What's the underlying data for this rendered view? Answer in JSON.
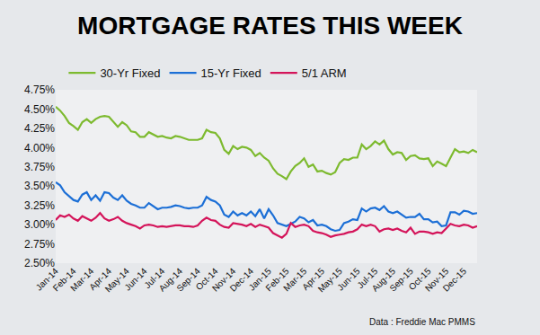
{
  "chart_data": {
    "type": "line",
    "title": "MORTGAGE RATES THIS WEEK",
    "source": "Data : Freddie Mac PMMS",
    "categories": [
      "Jan-14",
      null,
      null,
      null,
      "Feb-14",
      null,
      null,
      null,
      "Mar-14",
      null,
      null,
      null,
      "Apr-14",
      null,
      null,
      null,
      "May-14",
      null,
      null,
      null,
      "Jun-14",
      null,
      null,
      null,
      "Jul-14",
      null,
      null,
      null,
      "Aug-14",
      null,
      null,
      null,
      "Sep-14",
      null,
      null,
      null,
      "Oct-14",
      null,
      null,
      null,
      "Nov-14",
      null,
      null,
      null,
      "Dec-14",
      null,
      null,
      null,
      "Jan-15",
      null,
      null,
      null,
      "Feb-15",
      null,
      null,
      null,
      "Mar-15",
      null,
      null,
      null,
      "Apr-15",
      null,
      null,
      null,
      "May-15",
      null,
      null,
      null,
      "Jun-15",
      null,
      null,
      null,
      "Jul-15",
      null,
      null,
      null,
      "Aug-15",
      null,
      null,
      null,
      "Sep-15",
      null,
      null,
      null,
      "Oct-15",
      null,
      null,
      null,
      "Nov-15",
      null,
      null,
      null,
      "Dec-15",
      null,
      null,
      null
    ],
    "series": [
      {
        "name": "30-Yr Fixed",
        "color": "#7dba2f",
        "values": [
          4.53,
          4.48,
          4.41,
          4.32,
          4.28,
          4.23,
          4.33,
          4.37,
          4.32,
          4.37,
          4.4,
          4.41,
          4.4,
          4.34,
          4.27,
          4.33,
          4.29,
          4.21,
          4.2,
          4.14,
          4.14,
          4.2,
          4.17,
          4.14,
          4.15,
          4.13,
          4.12,
          4.15,
          4.14,
          4.12,
          4.1,
          4.1,
          4.1,
          4.12,
          4.23,
          4.2,
          4.19,
          4.12,
          3.97,
          3.92,
          4.02,
          3.98,
          4.01,
          4.0,
          3.97,
          3.89,
          3.93,
          3.87,
          3.83,
          3.73,
          3.66,
          3.63,
          3.59,
          3.69,
          3.76,
          3.8,
          3.86,
          3.75,
          3.78,
          3.69,
          3.7,
          3.67,
          3.65,
          3.68,
          3.8,
          3.85,
          3.84,
          3.87,
          3.87,
          4.04,
          3.98,
          4.02,
          4.08,
          4.04,
          4.09,
          3.98,
          3.91,
          3.94,
          3.93,
          3.84,
          3.89,
          3.9,
          3.86,
          3.85,
          3.86,
          3.76,
          3.82,
          3.79,
          3.76,
          3.87,
          3.98,
          3.94,
          3.95,
          3.93,
          3.97,
          3.94
        ]
      },
      {
        "name": "15-Yr Fixed",
        "color": "#1c6fd6",
        "values": [
          3.55,
          3.51,
          3.42,
          3.37,
          3.32,
          3.3,
          3.39,
          3.42,
          3.32,
          3.38,
          3.31,
          3.42,
          3.41,
          3.35,
          3.32,
          3.38,
          3.31,
          3.27,
          3.25,
          3.22,
          3.22,
          3.28,
          3.24,
          3.2,
          3.22,
          3.22,
          3.23,
          3.25,
          3.24,
          3.22,
          3.21,
          3.22,
          3.22,
          3.25,
          3.36,
          3.32,
          3.3,
          3.25,
          3.13,
          3.1,
          3.17,
          3.12,
          3.15,
          3.12,
          3.17,
          3.11,
          3.2,
          3.08,
          3.2,
          3.12,
          3.02,
          3.0,
          2.98,
          3.01,
          3.04,
          3.1,
          3.08,
          3.03,
          3.06,
          2.99,
          3.0,
          2.98,
          2.94,
          2.92,
          2.93,
          3.02,
          3.04,
          3.07,
          3.06,
          3.21,
          3.17,
          3.21,
          3.22,
          3.19,
          3.24,
          3.17,
          3.15,
          3.17,
          3.13,
          3.09,
          3.1,
          3.1,
          3.14,
          3.07,
          3.07,
          3.03,
          3.04,
          2.98,
          2.99,
          3.16,
          3.16,
          3.13,
          3.18,
          3.17,
          3.14,
          3.15
        ]
      },
      {
        "name": "5/1 ARM",
        "color": "#d4145a",
        "values": [
          3.06,
          3.12,
          3.1,
          3.13,
          3.08,
          3.05,
          3.11,
          3.08,
          3.05,
          3.09,
          3.15,
          3.08,
          3.05,
          3.07,
          3.1,
          3.05,
          3.02,
          3.0,
          2.98,
          2.95,
          2.99,
          3.0,
          2.99,
          2.97,
          2.98,
          2.97,
          2.98,
          2.99,
          2.99,
          2.98,
          2.98,
          2.97,
          2.99,
          3.05,
          3.09,
          3.06,
          3.05,
          3.0,
          2.97,
          2.96,
          3.02,
          3.01,
          3.0,
          2.98,
          3.01,
          2.97,
          3.0,
          2.98,
          2.96,
          2.89,
          2.86,
          2.83,
          2.88,
          3.02,
          2.97,
          2.99,
          3.0,
          2.98,
          2.92,
          2.9,
          2.89,
          2.87,
          2.84,
          2.86,
          2.87,
          2.88,
          2.9,
          2.91,
          2.94,
          3.0,
          2.98,
          3.0,
          2.98,
          2.91,
          2.94,
          2.95,
          2.93,
          2.95,
          2.92,
          2.9,
          2.96,
          2.88,
          2.91,
          2.91,
          2.9,
          2.88,
          2.9,
          2.89,
          2.95,
          3.01,
          2.99,
          2.98,
          3.0,
          2.99,
          2.96,
          2.98
        ]
      }
    ],
    "ylim": [
      2.5,
      4.75
    ],
    "yticks": [
      {
        "value": 2.5,
        "label": "2.50%"
      },
      {
        "value": 2.75,
        "label": "2.75%"
      },
      {
        "value": 3.0,
        "label": "3.00%"
      },
      {
        "value": 3.25,
        "label": "3.25%"
      },
      {
        "value": 3.5,
        "label": "3.50%"
      },
      {
        "value": 3.75,
        "label": "3.75%"
      },
      {
        "value": 4.0,
        "label": "4.00%"
      },
      {
        "value": 4.25,
        "label": "4.25%"
      },
      {
        "value": 4.5,
        "label": "4.50%"
      },
      {
        "value": 4.75,
        "label": "4.75%"
      }
    ],
    "grid": false,
    "legend": "top"
  }
}
